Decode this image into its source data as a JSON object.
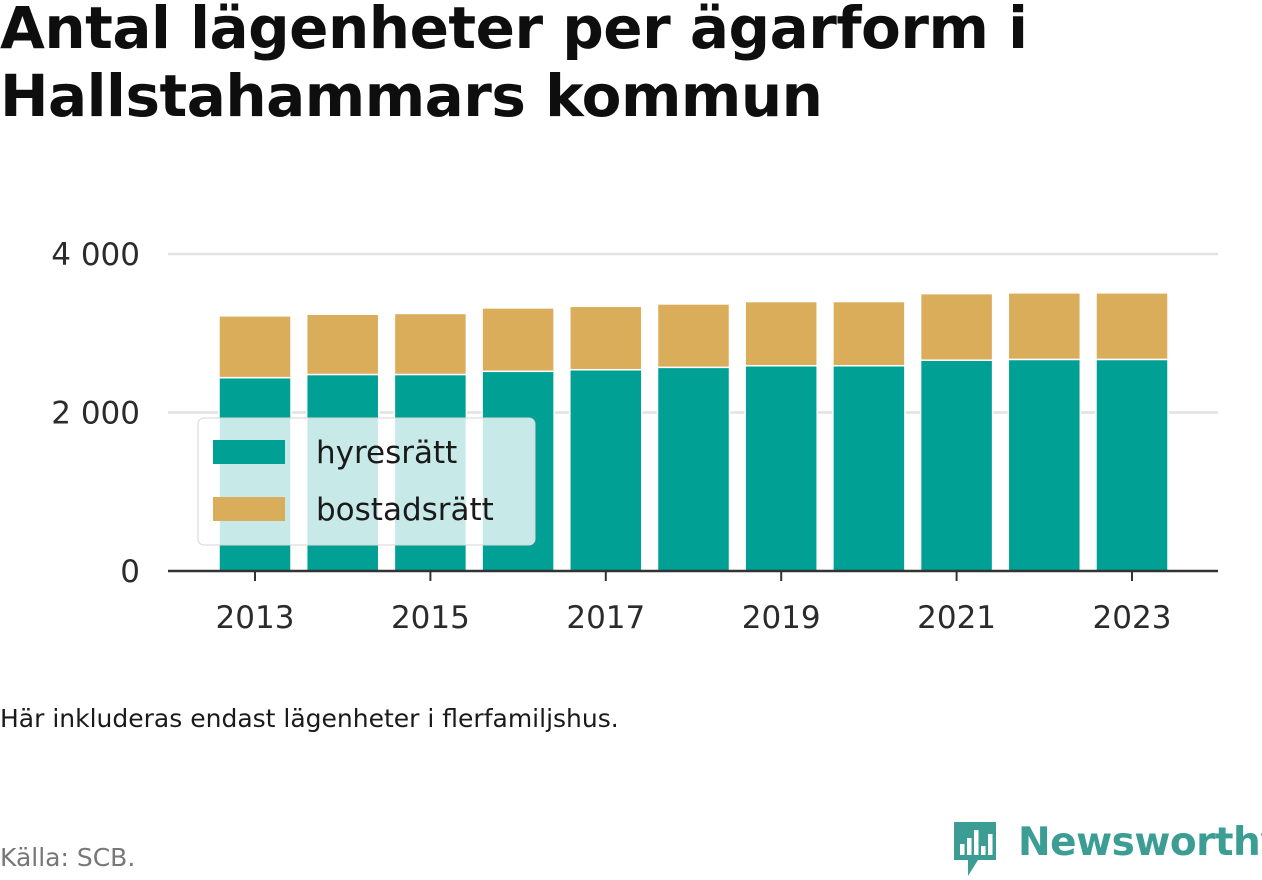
{
  "title": "Antal lägenheter per ägarform i Hallstahammars kommun",
  "note": "Här inkluderas endast lägenheter i flerfamiljshus.",
  "source": "Källa: SCB.",
  "brand": {
    "name": "Newsworthy",
    "icon": "newsworthy-logo-icon",
    "color": "#3c9d94"
  },
  "chart_data": {
    "type": "bar",
    "stacked": true,
    "title": "Antal lägenheter per ägarform i Hallstahammars kommun",
    "xlabel": "",
    "ylabel": "",
    "categories": [
      "2013",
      "2014",
      "2015",
      "2016",
      "2017",
      "2018",
      "2019",
      "2020",
      "2021",
      "2022",
      "2023"
    ],
    "x_tick_labels": [
      "2013",
      "2015",
      "2017",
      "2019",
      "2021",
      "2023"
    ],
    "y_tick_labels": [
      "0",
      "2 000",
      "4 000"
    ],
    "y_ticks": [
      0,
      2000,
      4000
    ],
    "ylim": [
      0,
      4000
    ],
    "grid": true,
    "legend_position": "bottom-left",
    "series": [
      {
        "name": "hyresrätt",
        "color": "#00a095",
        "values": [
          2440,
          2480,
          2480,
          2520,
          2540,
          2570,
          2590,
          2590,
          2660,
          2670,
          2670
        ]
      },
      {
        "name": "bostadsrätt",
        "color": "#daad5b",
        "values": [
          780,
          760,
          770,
          800,
          800,
          800,
          810,
          810,
          840,
          840,
          840
        ]
      }
    ]
  }
}
